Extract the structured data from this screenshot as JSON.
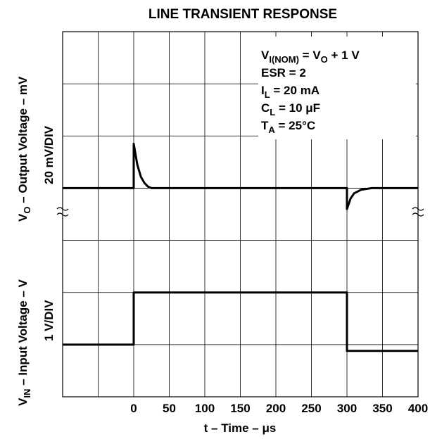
{
  "chart_data": {
    "type": "line",
    "title": "LINE TRANSIENT RESPONSE",
    "xlabel": "t – Time – μs",
    "ylabel_output": {
      "line1": "V",
      "line1_sub": "O",
      "line1_rest": " – Output Voltage – mV",
      "line2": "20 mV/DIV"
    },
    "ylabel_input": {
      "line1": "V",
      "line1_sub": "IN",
      "line1_rest": " – Input Voltage – V",
      "line2": "1 V/DIV"
    },
    "x_ticks": [
      "0",
      "50",
      "100",
      "150",
      "200",
      "250",
      "300",
      "350",
      "400"
    ],
    "xlim": [
      -100,
      400
    ],
    "grid": true,
    "conditions": [
      {
        "main": "V",
        "sub": "I(NOM)",
        "rest": " = V",
        "sub2": "O",
        "rest2": " + 1 V"
      },
      {
        "main": "ESR = 2",
        "sub": "",
        "rest": "",
        "sub2": "",
        "rest2": ""
      },
      {
        "main": "I",
        "sub": "L",
        "rest": " = 20 mA",
        "sub2": "",
        "rest2": ""
      },
      {
        "main": "C",
        "sub": "L",
        "rest": " = 10 μF",
        "sub2": "",
        "rest2": ""
      },
      {
        "main": "T",
        "sub": "A",
        "rest": " = 25°C",
        "sub2": "",
        "rest2": ""
      }
    ],
    "series": [
      {
        "name": "V_O",
        "units": "divisions",
        "baseline": 0,
        "x": [
          -100,
          0,
          0,
          5,
          10,
          15,
          20,
          25,
          300,
          300,
          305,
          310,
          320,
          335,
          400
        ],
        "y": [
          0,
          0,
          0.85,
          0.45,
          0.22,
          0.1,
          0.03,
          0,
          0,
          -0.4,
          -0.2,
          -0.1,
          -0.03,
          0,
          0
        ]
      },
      {
        "name": "V_IN",
        "units": "V",
        "x": [
          -100,
          0,
          0,
          300,
          300,
          400
        ],
        "y": [
          0,
          0,
          1,
          1,
          -0.12,
          -0.12
        ]
      }
    ]
  }
}
